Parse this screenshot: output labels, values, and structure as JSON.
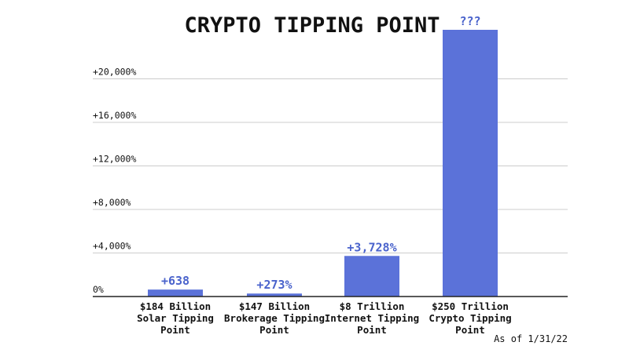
{
  "chart_data": {
    "type": "bar",
    "title": "CRYPTO TIPPING POINT",
    "categories": [
      [
        "$184 Billion",
        "Solar Tipping",
        "Point"
      ],
      [
        "$147 Billion",
        "Brokerage Tipping",
        "Point"
      ],
      [
        "$8 Trillion",
        "Internet Tipping",
        "Point"
      ],
      [
        "$250 Trillion",
        "Crypto Tipping",
        "Point"
      ]
    ],
    "values": [
      638,
      273,
      3728,
      24500
    ],
    "data_labels": [
      "+638",
      "+273%",
      "+3,728%",
      "???"
    ],
    "yticks": [
      0,
      4000,
      8000,
      12000,
      16000,
      20000
    ],
    "ytick_labels": [
      "0%",
      "+4,000%",
      "+8,000%",
      "+12,000%",
      "+16,000%",
      "+20,000%"
    ],
    "ylim": [
      0,
      24500
    ],
    "grid": true,
    "note": "As of 1/31/22",
    "colors": {
      "bar": "#5b72d9",
      "label": "#4a63cc",
      "grid": "#cccccc",
      "axis": "#222222"
    }
  }
}
